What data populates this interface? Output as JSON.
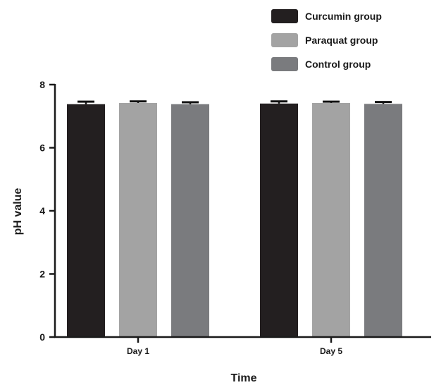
{
  "chart_data": {
    "type": "bar",
    "title": "",
    "xlabel": "Time",
    "ylabel": "pH value",
    "ylim": [
      0,
      8
    ],
    "yticks": [
      0,
      2,
      4,
      6,
      8
    ],
    "grid": false,
    "legend_position": "top-right",
    "categories": [
      "Day 1",
      "Day 5"
    ],
    "series": [
      {
        "name": "Curcumin group",
        "color": "#231f20",
        "values": [
          7.38,
          7.4
        ],
        "errors": [
          0.08,
          0.07
        ]
      },
      {
        "name": "Paraquat group",
        "color": "#a3a3a3",
        "values": [
          7.42,
          7.42
        ],
        "errors": [
          0.05,
          0.04
        ]
      },
      {
        "name": "Control group",
        "color": "#7a7b7e",
        "values": [
          7.38,
          7.39
        ],
        "errors": [
          0.06,
          0.06
        ]
      }
    ]
  }
}
